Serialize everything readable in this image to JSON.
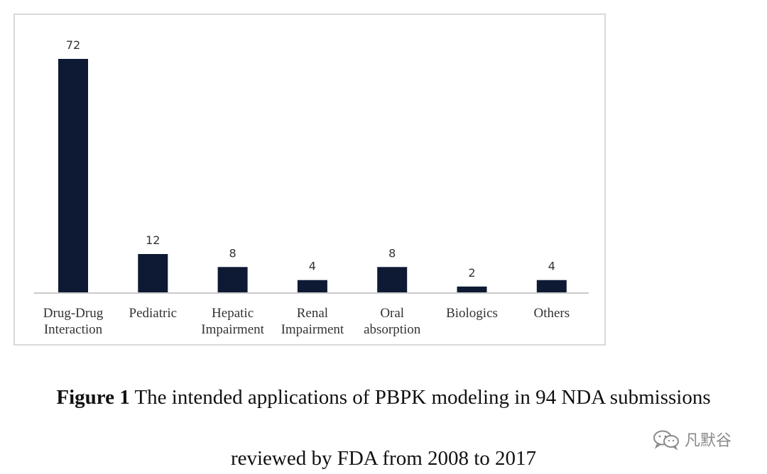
{
  "chart_data": {
    "type": "bar",
    "categories": [
      [
        "Drug-Drug",
        "Interaction"
      ],
      [
        "Pediatric"
      ],
      [
        "Hepatic",
        "Impairment"
      ],
      [
        "Renal",
        "Impairment"
      ],
      [
        "Oral",
        "absorption"
      ],
      [
        "Biologics"
      ],
      [
        "Others"
      ]
    ],
    "values": [
      72,
      12,
      8,
      4,
      8,
      2,
      4
    ],
    "data_labels": [
      "72",
      "12",
      "8",
      "4",
      "8",
      "2",
      "4"
    ],
    "ylim": [
      0,
      72
    ],
    "grid": false,
    "legend": "none",
    "bar_color": "#0e1a33"
  },
  "caption": {
    "label": "Figure 1",
    "text_line1": " The intended applications of PBPK modeling in 94 NDA submissions",
    "text_line2": "reviewed by FDA from 2008 to 2017"
  },
  "watermark": {
    "text": "凡默谷",
    "icon": "wechat-icon"
  }
}
